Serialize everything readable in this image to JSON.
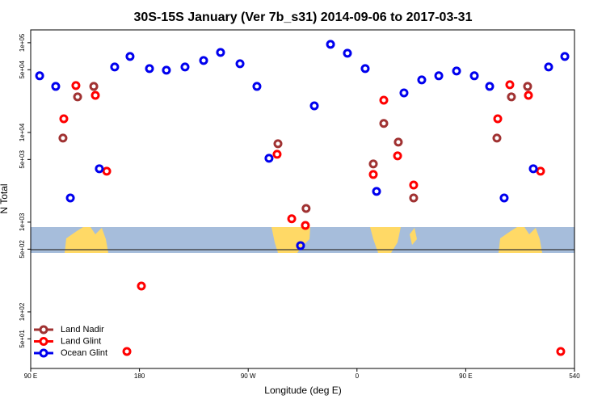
{
  "chart_data": {
    "type": "scatter",
    "title": "30S-15S January (Ver 7b_s31)   2014-09-06 to 2017-03-31",
    "x_label": "Longitude (deg E)",
    "y_label": "N Total",
    "xlim": [
      90,
      540
    ],
    "xticks": [
      {
        "value": 90,
        "label": "90 E"
      },
      180,
      {
        "value": 270,
        "label": "90 W"
      },
      {
        "value": 360,
        "label": "0"
      },
      {
        "value": 450,
        "label": "90 E"
      },
      540
    ],
    "ylim": [
      23.4,
      139000
    ],
    "ylog": true,
    "yticks": [
      {
        "value": 50,
        "label": "5e+01"
      },
      {
        "value": 100,
        "label": "1e+02"
      },
      {
        "value": 500,
        "label": "5e+02"
      },
      {
        "value": 1000,
        "label": "1e+03"
      },
      {
        "value": 5000,
        "label": "5e+03"
      },
      {
        "value": 10000,
        "label": "1e+04"
      },
      {
        "value": 50000,
        "label": "5e+04"
      },
      {
        "value": 100000,
        "label": "1e+05"
      }
    ],
    "legend": "lower left",
    "series": [
      {
        "name": "Land Nadir",
        "color": "#a03232",
        "x": [
          116.7,
          128.8,
          142.2,
          294.6,
          317.9,
          373.5,
          382.2,
          394.2,
          406.9,
          475.8,
          487.8,
          501.2
        ],
        "values": [
          8650,
          24900,
          32600,
          7480,
          1420,
          4460,
          12600,
          7800,
          1860,
          8650,
          24900,
          32600
        ]
      },
      {
        "name": "Land Glint",
        "color": "#ff0000",
        "x": [
          117.4,
          127.4,
          143.5,
          152.9,
          181.6,
          169.6,
          293.9,
          306.0,
          317.3,
          373.5,
          382.2,
          393.6,
          406.9,
          476.5,
          486.5,
          501.9,
          511.9,
          528.6
        ],
        "values": [
          14200,
          33300,
          25900,
          3700,
          194,
          36.2,
          5710,
          1090,
          920,
          3400,
          22900,
          5480,
          2590,
          14200,
          34000,
          25900,
          3700,
          36.2
        ]
      },
      {
        "name": "Ocean Glint",
        "color": "#0000ee",
        "x": [
          97.4,
          110.7,
          122.8,
          146.8,
          159.5,
          172.2,
          188.3,
          202.3,
          217.7,
          233.1,
          247.1,
          263.2,
          277.2,
          287.2,
          313.3,
          324.7,
          338.1,
          352.1,
          366.8,
          376.2,
          398.9,
          413.6,
          427.7,
          442.4,
          457.1,
          469.8,
          481.8,
          505.9,
          518.6,
          532.0
        ],
        "values": [
          42800,
          32600,
          1860,
          3940,
          53700,
          70300,
          51500,
          49400,
          53700,
          63400,
          78000,
          58300,
          32600,
          5150,
          548,
          19800,
          95900,
          76400,
          51500,
          2200,
          27600,
          38500,
          42800,
          48400,
          42800,
          32600,
          1860,
          3940,
          53700,
          70300
        ]
      }
    ]
  }
}
